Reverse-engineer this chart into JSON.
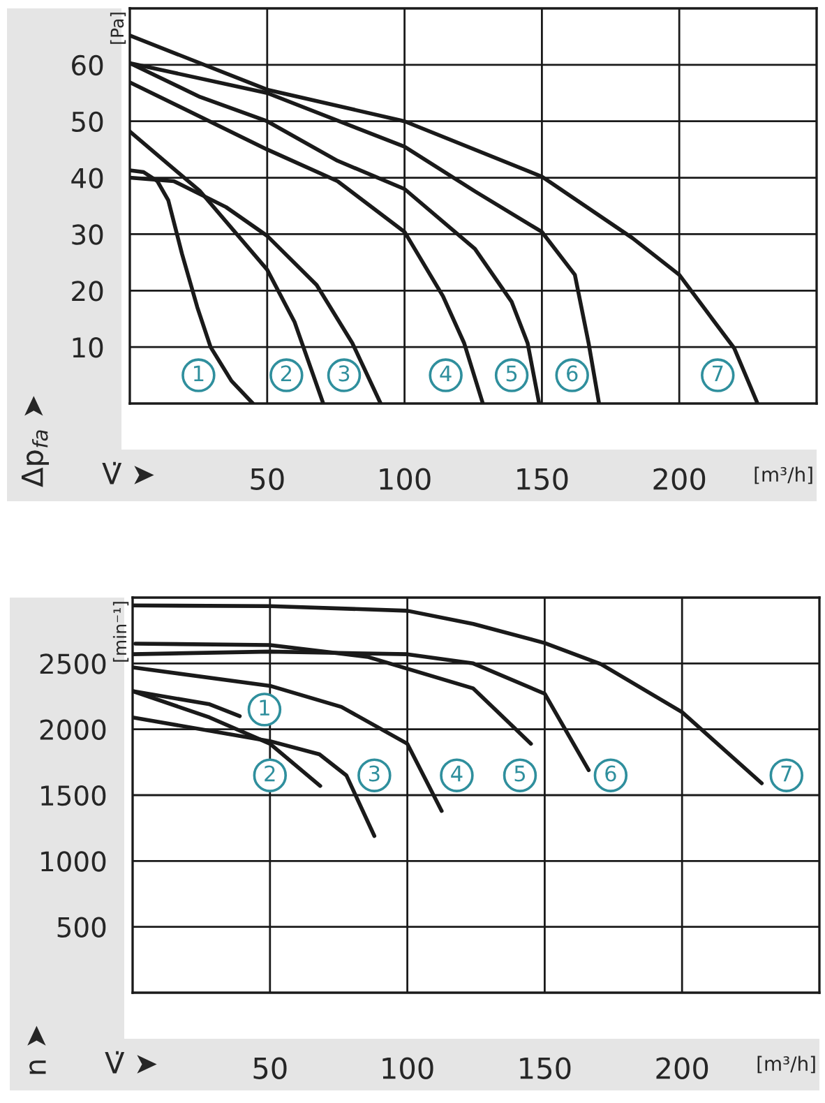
{
  "chart_data": [
    {
      "type": "line",
      "xlabel": "V̇ ➤",
      "ylabel": "Δp$_{fa}$ ➤",
      "annotations": [
        "[Pa]",
        "[m³/h]",
        {
          "text": "1",
          "x": 25,
          "y": 5
        },
        {
          "text": "2",
          "x": 57,
          "y": 5
        },
        {
          "text": "3",
          "x": 78,
          "y": 5
        },
        {
          "text": "4",
          "x": 115,
          "y": 5
        },
        {
          "text": "5",
          "x": 139,
          "y": 5
        },
        {
          "text": "6",
          "x": 161,
          "y": 5
        },
        {
          "text": "7",
          "x": 214,
          "y": 5
        }
      ],
      "xlim": [
        0,
        250
      ],
      "xticks": [
        50,
        100,
        150,
        200
      ],
      "ylim": [
        0,
        70
      ],
      "yticks": [
        10,
        20,
        30,
        40,
        50,
        60
      ],
      "grid": true,
      "legend": false,
      "marker": "none",
      "line_style": "solid",
      "series": [
        {
          "color": "#1a1a1a",
          "x": [
            0,
            5,
            10,
            14,
            19,
            24.6,
            29.4,
            37,
            44.8
          ],
          "values": [
            41.3,
            41,
            39.4,
            36,
            26.5,
            17,
            10,
            4,
            0
          ]
        },
        {
          "color": "#1a1a1a",
          "x": [
            0,
            25.6,
            50,
            60,
            70.4
          ],
          "values": [
            48.2,
            37.6,
            23.7,
            14.4,
            0
          ]
        },
        {
          "color": "#1a1a1a",
          "x": [
            0,
            16,
            35,
            50,
            68,
            81,
            91.3
          ],
          "values": [
            40,
            39.4,
            34.8,
            29.7,
            21,
            10.7,
            0
          ]
        },
        {
          "color": "#1a1a1a",
          "x": [
            0,
            50,
            75.6,
            100,
            114,
            121.7,
            128.5
          ],
          "values": [
            56.9,
            45,
            39.4,
            30.4,
            19,
            10.7,
            0
          ]
        },
        {
          "color": "#1a1a1a",
          "x": [
            0,
            25.6,
            50,
            75.6,
            100,
            125.6,
            139,
            144.8,
            149
          ],
          "values": [
            60.3,
            54.3,
            50,
            43,
            38,
            27.4,
            18,
            10.7,
            0
          ]
        },
        {
          "color": "#1a1a1a",
          "x": [
            0,
            50,
            100,
            125.6,
            150,
            162,
            167,
            170.8
          ],
          "values": [
            60.3,
            55,
            45.5,
            37.6,
            30.4,
            22.8,
            10.7,
            0
          ]
        },
        {
          "color": "#1a1a1a",
          "x": [
            0,
            50,
            100,
            150,
            183,
            200,
            220,
            228.5
          ],
          "values": [
            65.2,
            55.6,
            50,
            40.2,
            29.3,
            22.8,
            9.8,
            0
          ]
        }
      ]
    },
    {
      "type": "line",
      "xlabel": "V̇ ➤",
      "ylabel": "n ➤",
      "annotations": [
        "[min⁻¹]",
        "[m³/h]",
        {
          "text": "1",
          "x": 48,
          "y": 2150
        },
        {
          "text": "2",
          "x": 50,
          "y": 1650
        },
        {
          "text": "3",
          "x": 88,
          "y": 1650
        },
        {
          "text": "4",
          "x": 118,
          "y": 1650
        },
        {
          "text": "5",
          "x": 141,
          "y": 1650
        },
        {
          "text": "6",
          "x": 174,
          "y": 1650
        },
        {
          "text": "7",
          "x": 238,
          "y": 1650
        }
      ],
      "xlim": [
        0,
        250
      ],
      "xticks": [
        50,
        100,
        150,
        200
      ],
      "ylim": [
        0,
        3000
      ],
      "yticks": [
        500,
        1000,
        1500,
        2000,
        2500
      ],
      "grid": true,
      "legend": false,
      "marker": "none",
      "line_style": "solid",
      "series": [
        {
          "color": "#1a1a1a",
          "x": [
            0,
            28,
            39
          ],
          "values": [
            2290,
            2190,
            2100
          ]
        },
        {
          "color": "#1a1a1a",
          "x": [
            0,
            28,
            50,
            68.3
          ],
          "values": [
            2290,
            2090,
            1890,
            1570
          ]
        },
        {
          "color": "#1a1a1a",
          "x": [
            0,
            50,
            68,
            77.8,
            88
          ],
          "values": [
            2090,
            1910,
            1810,
            1650,
            1190
          ]
        },
        {
          "color": "#1a1a1a",
          "x": [
            0,
            50,
            76,
            100,
            112.5
          ],
          "values": [
            2470,
            2330,
            2170,
            1890,
            1380
          ]
        },
        {
          "color": "#1a1a1a",
          "x": [
            1,
            50,
            85.5,
            124,
            145
          ],
          "values": [
            2650,
            2640,
            2550,
            2310,
            1890
          ]
        },
        {
          "color": "#1a1a1a",
          "x": [
            0,
            50,
            100,
            124,
            150,
            166
          ],
          "values": [
            2570,
            2590,
            2570,
            2500,
            2270,
            1690
          ]
        },
        {
          "color": "#1a1a1a",
          "x": [
            0,
            50,
            100,
            124,
            150,
            170.5,
            200,
            229
          ],
          "values": [
            2940,
            2935,
            2900,
            2800,
            2655,
            2495,
            2130,
            1590
          ]
        }
      ]
    }
  ]
}
